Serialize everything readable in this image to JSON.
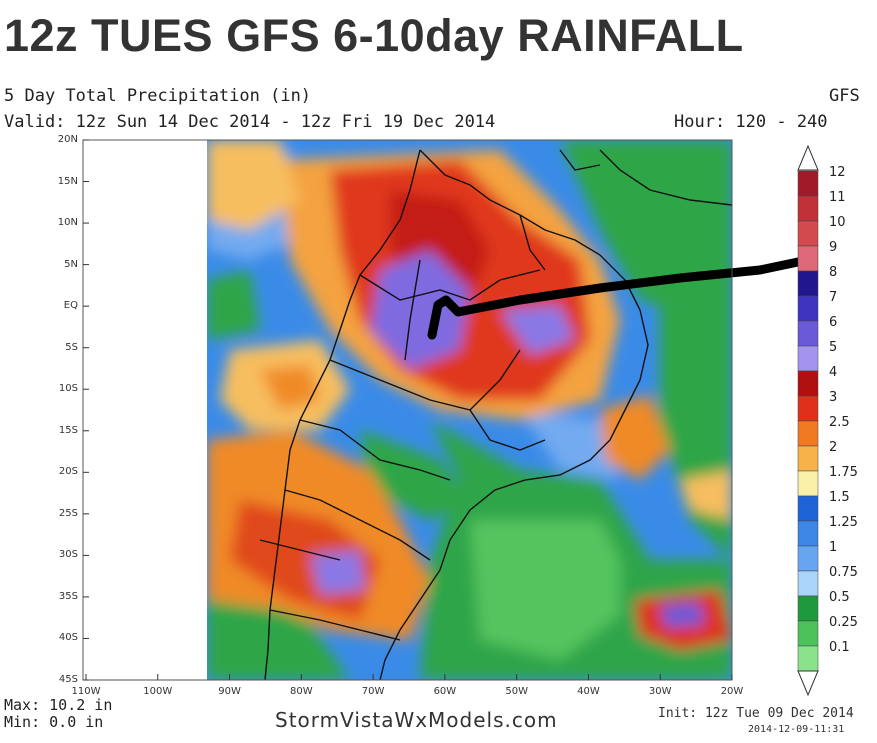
{
  "headline": "12z TUES GFS 6-10day RAINFALL",
  "map_header": {
    "line1_left": "5 Day Total Precipitation (in)",
    "line1_right": "GFS",
    "valid": "Valid: 12z Sun 14 Dec 2014 - 12z Fri 19 Dec 2014",
    "hour": "Hour: 120 - 240"
  },
  "lat_labels": [
    "20N",
    "15N",
    "10N",
    "5N",
    "EQ",
    "5S",
    "10S",
    "15S",
    "20S",
    "25S",
    "30S",
    "35S",
    "40S",
    "45S"
  ],
  "lon_labels": [
    "110W",
    "100W",
    "90W",
    "80W",
    "70W",
    "60W",
    "50W",
    "40W",
    "30W",
    "20W"
  ],
  "colorbar": {
    "labels": [
      "12",
      "11",
      "10",
      "9",
      "8",
      "7",
      "6",
      "5",
      "4",
      "3",
      "2.5",
      "2",
      "1.75",
      "1.5",
      "1.25",
      "1",
      "0.75",
      "0.5",
      "0.25",
      "0.1"
    ],
    "colors": [
      "#a11a2a",
      "#c03238",
      "#d24a4e",
      "#dc6878",
      "#22168e",
      "#3f34c0",
      "#6a5ad8",
      "#a494f0",
      "#b01010",
      "#e0301c",
      "#f07a22",
      "#f7b24a",
      "#fbf0a8",
      "#1e64d6",
      "#3e86e6",
      "#66a6f0",
      "#aad4fa",
      "#1e9a3c",
      "#4ec25a",
      "#8ae28a"
    ]
  },
  "stats": {
    "max": "Max: 10.2 in",
    "min": "Min: 0.0 in"
  },
  "credit": "StormVistaWxModels.com",
  "init": "Init: 12z Tue 09 Dec 2014",
  "stamp": "2014-12-09-11:31"
}
